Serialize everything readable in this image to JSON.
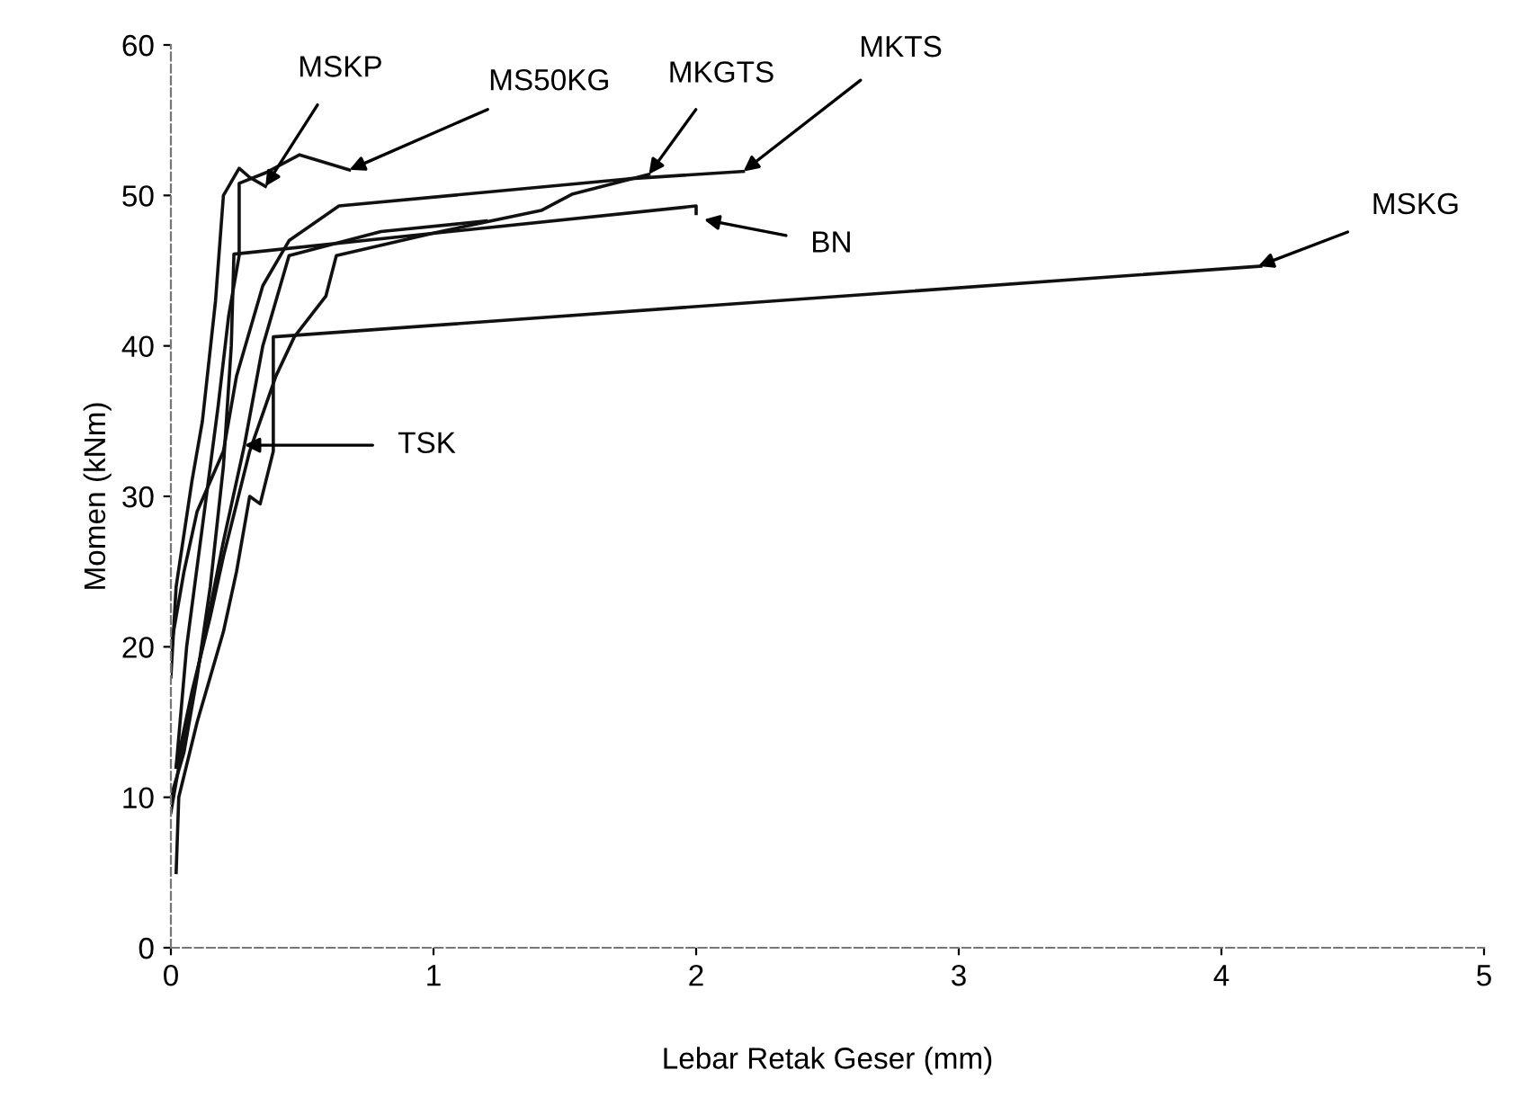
{
  "chart_data": {
    "type": "line",
    "xlabel": "Lebar Retak Geser (mm)",
    "ylabel": "Momen (kNm)",
    "xlim": [
      0,
      5
    ],
    "ylim": [
      0,
      60
    ],
    "xticks": [
      0,
      1,
      2,
      3,
      4,
      5
    ],
    "yticks": [
      0,
      10,
      20,
      30,
      40,
      50,
      60
    ],
    "grid": false,
    "legend": false,
    "marker": "none",
    "line_style": "solid",
    "series": [
      {
        "color": "#111111",
        "x": [
          0.0,
          0.05,
          0.1,
          0.15,
          0.2,
          0.23,
          0.24,
          2.0,
          2.0
        ],
        "values": [
          10,
          13,
          18,
          24,
          32,
          40,
          46.1,
          49.3,
          48.8
        ]
      },
      {
        "color": "#111111",
        "x": [
          0.0,
          0.02,
          0.08,
          0.12,
          0.17,
          0.2,
          0.26,
          0.3,
          0.36
        ],
        "values": [
          18,
          24,
          31,
          35,
          43,
          50,
          51.8,
          51.2,
          50.6
        ]
      },
      {
        "color": "#111111",
        "x": [
          0.02,
          0.06,
          0.12,
          0.18,
          0.22,
          0.26,
          0.26,
          0.36,
          0.49,
          0.68
        ],
        "values": [
          12,
          20,
          28,
          36,
          42,
          46,
          50.8,
          51.5,
          52.7,
          51.7
        ]
      },
      {
        "color": "#111111",
        "x": [
          0.02,
          0.03,
          0.1,
          0.2,
          0.25,
          0.3,
          0.34,
          0.39,
          0.39,
          4.15
        ],
        "values": [
          5,
          10,
          15,
          21,
          25,
          30,
          29.5,
          33,
          40.6,
          45.3
        ]
      },
      {
        "color": "#111111",
        "x": [
          0.0,
          0.05,
          0.1,
          0.2,
          0.25,
          0.35,
          0.45,
          0.64,
          1.74,
          2.18
        ],
        "values": [
          20,
          25,
          29,
          33,
          38,
          44,
          47,
          49.3,
          51.1,
          51.6
        ]
      },
      {
        "color": "#111111",
        "x": [
          0.02,
          0.08,
          0.15,
          0.2,
          0.3,
          0.4,
          0.47,
          0.59,
          0.63,
          1.0,
          1.41,
          1.53,
          1.82
        ],
        "values": [
          12,
          17,
          22,
          26,
          33,
          38,
          40.6,
          43.3,
          46,
          47.5,
          49,
          50.1,
          51.4
        ]
      },
      {
        "color": "#111111",
        "x": [
          0.0,
          0.05,
          0.12,
          0.2,
          0.28,
          0.35,
          0.45,
          0.8,
          1.2
        ],
        "values": [
          9,
          14,
          20,
          27,
          33.4,
          40,
          46,
          47.6,
          48.3
        ]
      }
    ],
    "annotations": [
      {
        "text": "MSKP",
        "x": 0.36,
        "y": 50.6
      },
      {
        "text": "MS50KG",
        "x": 0.68,
        "y": 51.7
      },
      {
        "text": "MKGTS",
        "x": 1.82,
        "y": 51.4
      },
      {
        "text": "MKTS",
        "x": 2.18,
        "y": 51.6
      },
      {
        "text": "BN",
        "x": 2.03,
        "y": 48.4
      },
      {
        "text": "MSKG",
        "x": 4.14,
        "y": 45.3
      },
      {
        "text": "TSK",
        "x": 0.28,
        "y": 33.4
      }
    ]
  }
}
